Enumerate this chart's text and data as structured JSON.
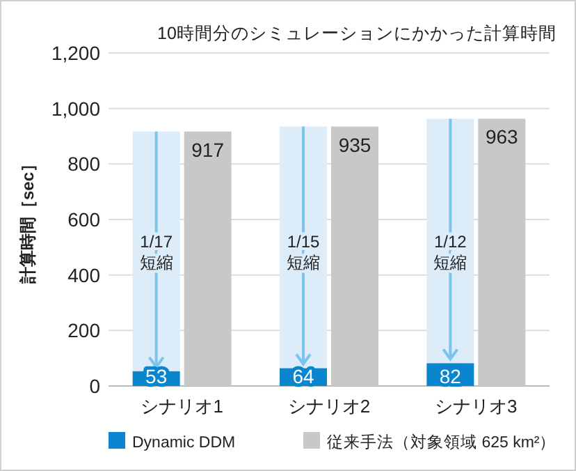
{
  "chart_data": {
    "type": "bar",
    "title": "10時間分のシミュレーションにかかった計算時間",
    "ylabel": "計算時間［sec］",
    "categories": [
      "シナリオ1",
      "シナリオ2",
      "シナリオ3"
    ],
    "series": [
      {
        "name": "Dynamic DDM",
        "color": "#0a86cf",
        "values": [
          53,
          64,
          82
        ]
      },
      {
        "name": "従来手法（対象領域 625 km²）",
        "color": "#c8c8c8",
        "values": [
          917,
          935,
          963
        ]
      }
    ],
    "ylim": [
      0,
      1200
    ],
    "yticks": [
      0,
      {
        "value": 200,
        "label": "200"
      },
      {
        "value": 400,
        "label": "400"
      },
      {
        "value": 600,
        "label": "600"
      },
      {
        "value": 800,
        "label": "800"
      },
      {
        "value": 1000,
        "label": "1,000"
      },
      {
        "value": 1200,
        "label": "1,200"
      }
    ],
    "grid": "y",
    "legend": "bottom",
    "data_labels": true,
    "annotations": [
      {
        "text": "1/17\n短縮",
        "x": "シナリオ1",
        "y": 500
      },
      {
        "text": "1/15\n短縮",
        "x": "シナリオ2",
        "y": 500
      },
      {
        "text": "1/12\n短縮",
        "x": "シナリオ3",
        "y": 500
      }
    ]
  }
}
